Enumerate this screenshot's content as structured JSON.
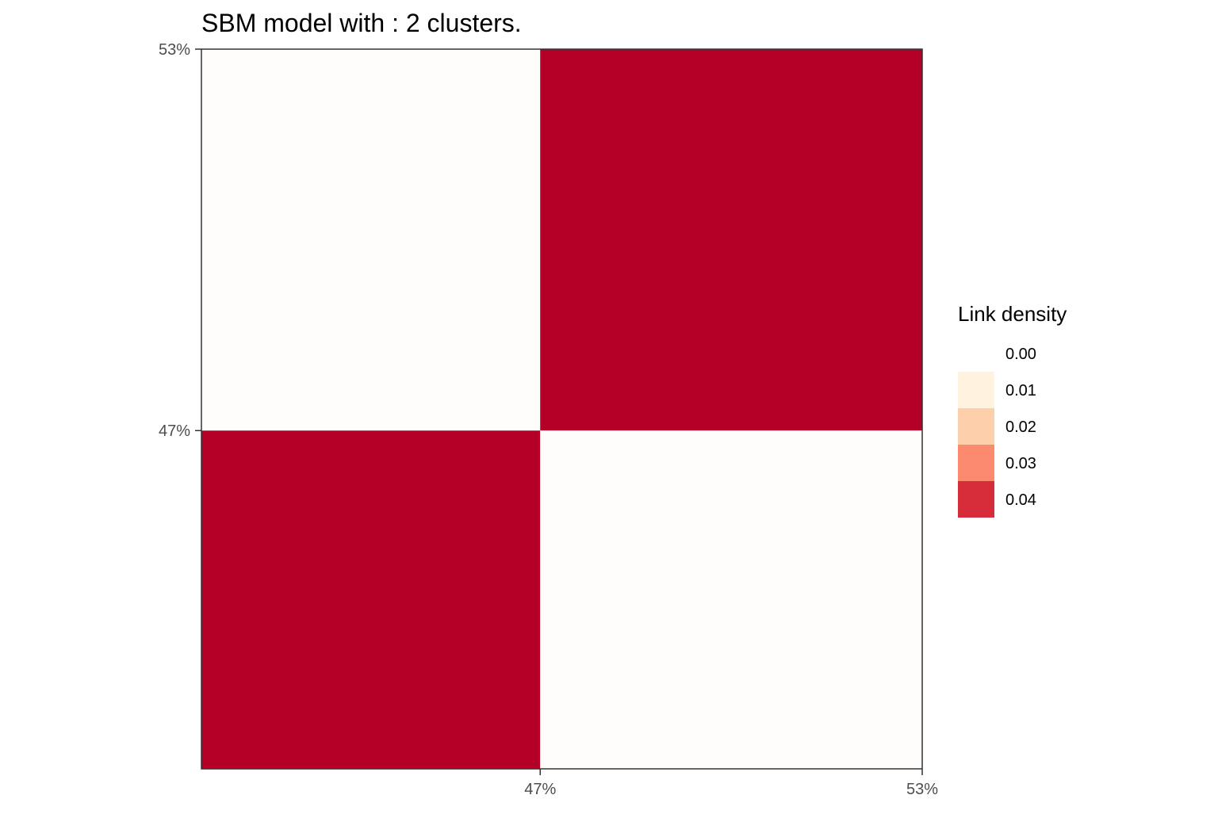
{
  "chart_data": {
    "type": "heatmap",
    "title": "SBM model with : 2 clusters.",
    "xlabel": "",
    "ylabel": "",
    "clusters": [
      {
        "proportion": 0.47,
        "tick_label": "47%"
      },
      {
        "proportion": 0.53,
        "tick_label": "53%"
      }
    ],
    "x_tick_labels": [
      "47%",
      "53%"
    ],
    "y_tick_labels": [
      "47%",
      "53%"
    ],
    "cells": [
      {
        "row": 1,
        "col": 0,
        "value": 0.0
      },
      {
        "row": 1,
        "col": 1,
        "value": 0.045
      },
      {
        "row": 0,
        "col": 0,
        "value": 0.045
      },
      {
        "row": 0,
        "col": 1,
        "value": 0.0
      }
    ],
    "legend": {
      "title": "Link density",
      "placement": "right",
      "entries": [
        {
          "label": "0.00",
          "color": "#FFFFFF"
        },
        {
          "label": "0.01",
          "color": "#FFF3E0"
        },
        {
          "label": "0.02",
          "color": "#FDD0AB"
        },
        {
          "label": "0.03",
          "color": "#FC8A6F"
        },
        {
          "label": "0.04",
          "color": "#D62C3A"
        }
      ]
    },
    "colors": {
      "high": "#B40027",
      "low": "#FEFDFB",
      "frame": "#333333"
    }
  }
}
